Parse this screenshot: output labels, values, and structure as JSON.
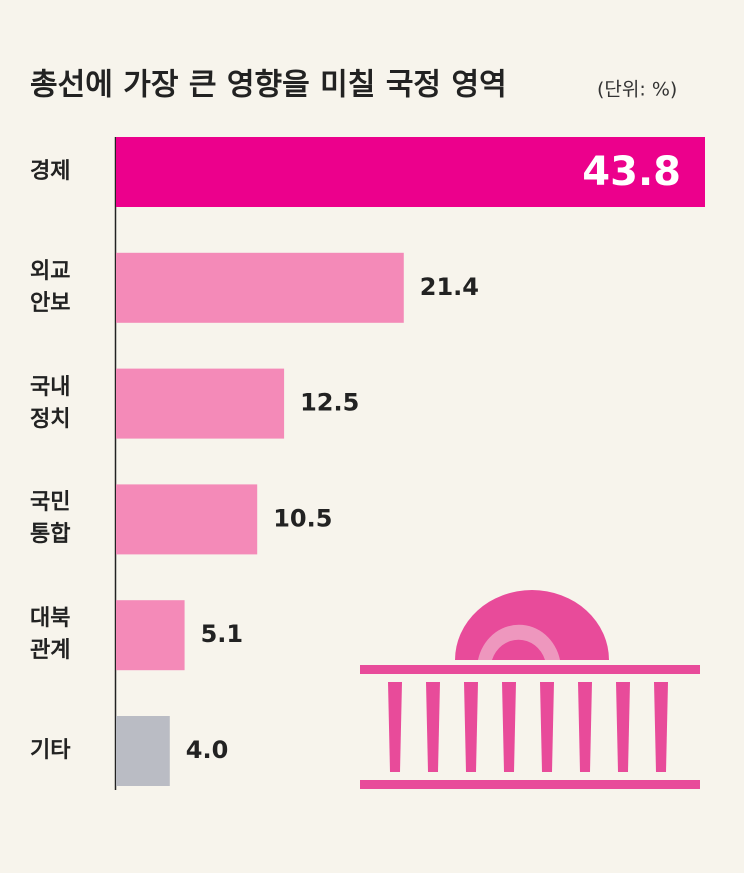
{
  "chart_data": {
    "type": "bar",
    "orientation": "horizontal",
    "title": "총선에 가장 큰 영향을 미칠 국정 영역",
    "subtitle": "(단위: %)",
    "categories": [
      "경제",
      "외교\n안보",
      "국내\n정치",
      "국민\n통합",
      "대북\n관계",
      "기타"
    ],
    "values": [
      43.8,
      21.4,
      12.5,
      10.5,
      5.1,
      4.0
    ],
    "value_labels": [
      "43.8",
      "21.4",
      "12.5",
      "10.5",
      "5.1",
      "4.0"
    ],
    "colors": [
      "#ec008c",
      "#f48ab8",
      "#f48ab8",
      "#f48ab8",
      "#f48ab8",
      "#babcc4"
    ]
  }
}
